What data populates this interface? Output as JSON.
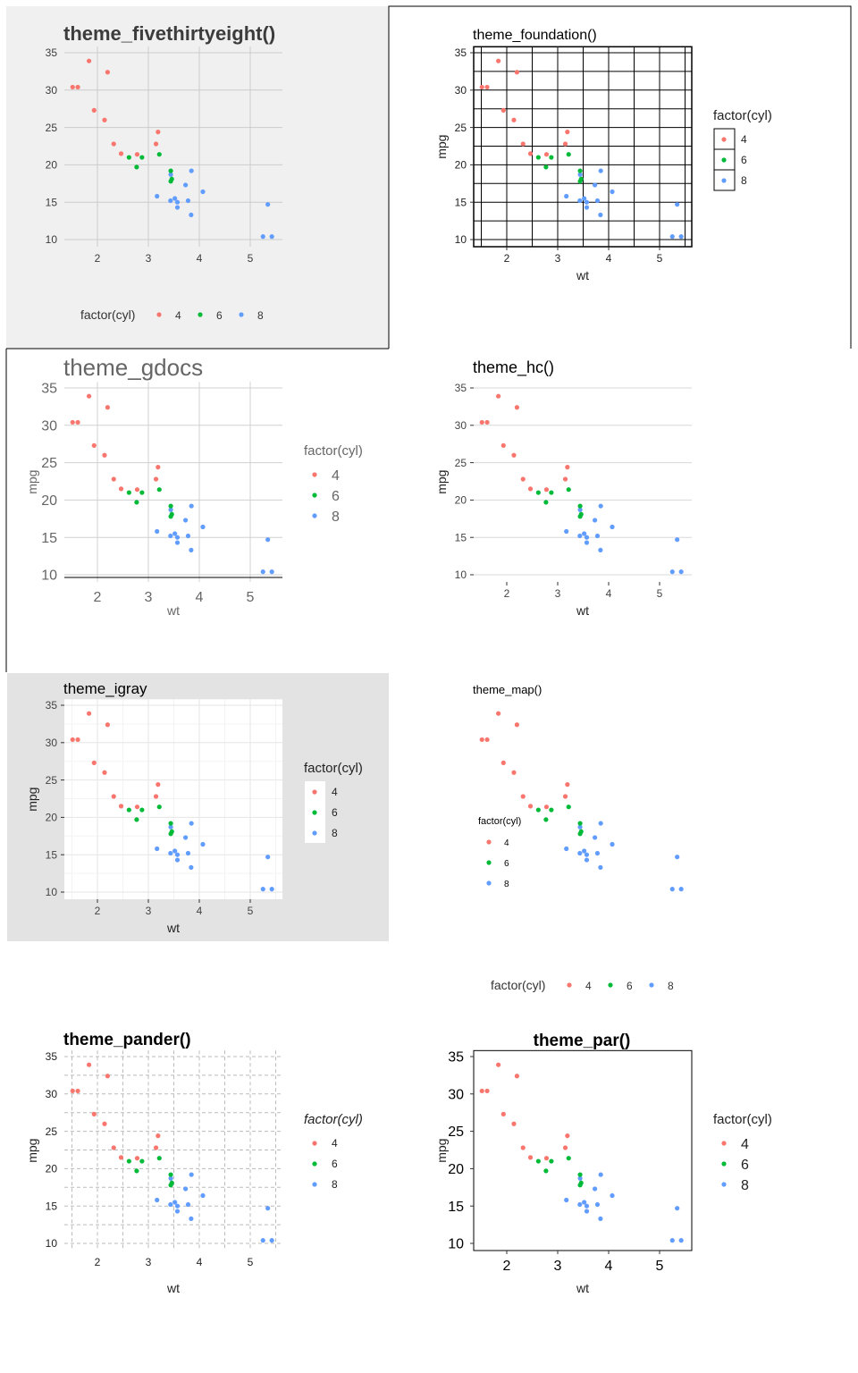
{
  "colors": {
    "4": "#F8766D",
    "6": "#00BA38",
    "8": "#619CFF"
  },
  "mtcars": {
    "wt": [
      2.62,
      2.875,
      2.32,
      3.215,
      3.44,
      3.46,
      3.57,
      3.19,
      3.15,
      3.44,
      3.44,
      4.07,
      3.73,
      3.78,
      5.25,
      5.424,
      5.345,
      2.2,
      1.615,
      1.835,
      2.465,
      3.52,
      3.435,
      3.84,
      3.845,
      1.935,
      2.14,
      1.513,
      3.17,
      2.77,
      3.57,
      2.78
    ],
    "mpg": [
      21.0,
      21.0,
      22.8,
      21.4,
      18.7,
      18.1,
      14.3,
      24.4,
      22.8,
      19.2,
      17.8,
      16.4,
      17.3,
      15.2,
      10.4,
      10.4,
      14.7,
      32.4,
      30.4,
      33.9,
      21.5,
      15.5,
      15.2,
      13.3,
      19.2,
      27.3,
      26.0,
      30.4,
      15.8,
      19.7,
      15.0,
      21.4
    ],
    "cyl": [
      6,
      6,
      4,
      6,
      8,
      6,
      8,
      4,
      4,
      6,
      6,
      8,
      8,
      8,
      8,
      8,
      8,
      4,
      4,
      4,
      4,
      8,
      8,
      8,
      8,
      4,
      4,
      4,
      8,
      6,
      8,
      4
    ]
  },
  "chart_data": [
    {
      "type": "scatter",
      "title": "theme_fivethirtyeight()",
      "xlabel": "",
      "ylabel": "",
      "xticks": [
        "2",
        "3",
        "4",
        "5"
      ],
      "yticks": [
        "10",
        "15",
        "20",
        "25",
        "30",
        "35"
      ],
      "xlim": [
        1.37,
        5.65
      ],
      "ylim": [
        9.2,
        35.8
      ],
      "legend": {
        "title": "factor(cyl)",
        "entries": [
          "4",
          "6",
          "8"
        ],
        "position": "bottom"
      },
      "grid": "major"
    },
    {
      "type": "scatter",
      "title": "theme_foundation()",
      "xlabel": "wt",
      "ylabel": "mpg",
      "xticks": [
        "2",
        "3",
        "4",
        "5"
      ],
      "yticks": [
        "10",
        "15",
        "20",
        "25",
        "30",
        "35"
      ],
      "xlim": [
        1.37,
        5.65
      ],
      "ylim": [
        9.2,
        35.8
      ],
      "legend": {
        "title": "factor(cyl)",
        "entries": [
          "4",
          "6",
          "8"
        ],
        "position": "right"
      },
      "grid": "major+minor"
    },
    {
      "type": "scatter",
      "title": "theme_gdocs",
      "xlabel": "wt",
      "ylabel": "mpg",
      "xticks": [
        "2",
        "3",
        "4",
        "5"
      ],
      "yticks": [
        "10",
        "15",
        "20",
        "25",
        "30",
        "35"
      ],
      "xlim": [
        1.37,
        5.65
      ],
      "ylim": [
        9.2,
        35.8
      ],
      "legend": {
        "title": "factor(cyl)",
        "entries": [
          "4",
          "6",
          "8"
        ],
        "position": "right"
      },
      "grid": "major"
    },
    {
      "type": "scatter",
      "title": "theme_hc()",
      "xlabel": "wt",
      "ylabel": "mpg",
      "xticks": [
        "2",
        "3",
        "4",
        "5"
      ],
      "yticks": [
        "10",
        "15",
        "20",
        "25",
        "30",
        "35"
      ],
      "xlim": [
        1.37,
        5.65
      ],
      "ylim": [
        9.2,
        35.8
      ],
      "legend": {
        "title": "factor(cyl)",
        "entries": [
          "4",
          "6",
          "8"
        ],
        "position": "bottom"
      },
      "grid": "horizontal"
    },
    {
      "type": "scatter",
      "title": "theme_igray",
      "xlabel": "wt",
      "ylabel": "mpg",
      "xticks": [
        "2",
        "3",
        "4",
        "5"
      ],
      "yticks": [
        "10",
        "15",
        "20",
        "25",
        "30",
        "35"
      ],
      "xlim": [
        1.37,
        5.65
      ],
      "ylim": [
        9.2,
        35.8
      ],
      "legend": {
        "title": "factor(cyl)",
        "entries": [
          "4",
          "6",
          "8"
        ],
        "position": "right"
      },
      "grid": "major+minor"
    },
    {
      "type": "scatter",
      "title": "theme_map()",
      "xlabel": "",
      "ylabel": "",
      "xticks": [],
      "yticks": [],
      "xlim": [
        1.37,
        5.65
      ],
      "ylim": [
        9.2,
        35.8
      ],
      "legend": {
        "title": "factor(cyl)",
        "entries": [
          "4",
          "6",
          "8"
        ],
        "position": "inside-left"
      },
      "grid": "none"
    },
    {
      "type": "scatter",
      "title": "theme_pander()",
      "xlabel": "wt",
      "ylabel": "mpg",
      "xticks": [
        "2",
        "3",
        "4",
        "5"
      ],
      "yticks": [
        "10",
        "15",
        "20",
        "25",
        "30",
        "35"
      ],
      "xlim": [
        1.37,
        5.65
      ],
      "ylim": [
        9.2,
        35.8
      ],
      "legend": {
        "title": "factor(cyl)",
        "entries": [
          "4",
          "6",
          "8"
        ],
        "position": "right"
      },
      "grid": "dashed major+minor"
    },
    {
      "type": "scatter",
      "title": "theme_par()",
      "xlabel": "wt",
      "ylabel": "mpg",
      "xticks": [
        "2",
        "3",
        "4",
        "5"
      ],
      "yticks": [
        "10",
        "15",
        "20",
        "25",
        "30",
        "35"
      ],
      "xlim": [
        1.37,
        5.65
      ],
      "ylim": [
        9.2,
        35.8
      ],
      "legend": {
        "title": "factor(cyl)",
        "entries": [
          "4",
          "6",
          "8"
        ],
        "position": "right"
      },
      "grid": "none"
    }
  ]
}
